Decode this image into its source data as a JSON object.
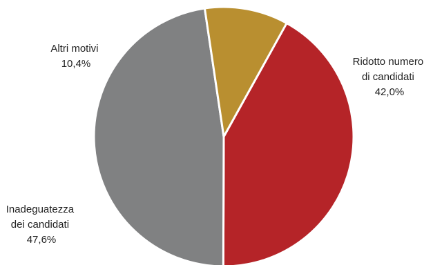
{
  "chart_data": {
    "type": "pie",
    "slices": [
      {
        "lines": [
          "Ridotto numero",
          "di candidati",
          "42,0%"
        ],
        "value": 42.0,
        "color": "#b52428"
      },
      {
        "lines": [
          "Inadeguatezza",
          "dei candidati",
          "47,6%"
        ],
        "value": 47.6,
        "color": "#808182"
      },
      {
        "lines": [
          "Altri motivi",
          "10,4%"
        ],
        "value": 10.4,
        "color": "#b98f30"
      }
    ]
  }
}
